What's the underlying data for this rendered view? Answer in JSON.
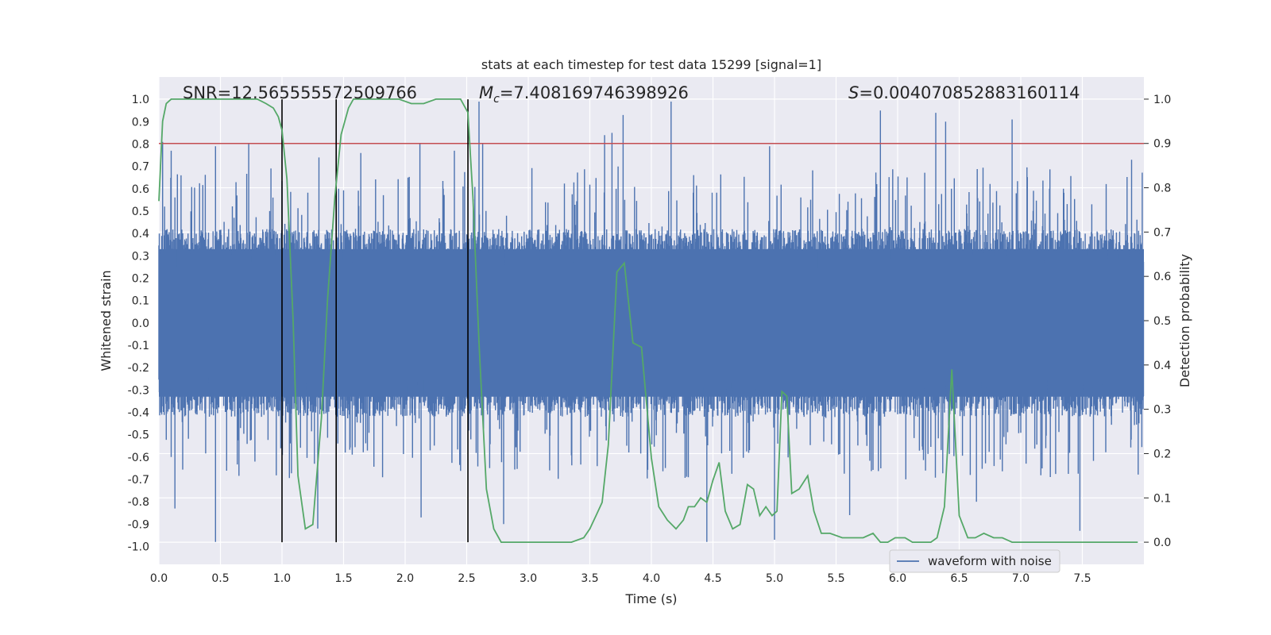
{
  "chart_data": {
    "type": "line",
    "title": "stats at each timestep for test data 15299 [signal=1]",
    "xlabel": "Time (s)",
    "ylabel_left": "Whitened strain",
    "ylabel_right": "Detection probability",
    "xlim": [
      0.0,
      8.0
    ],
    "ylim_left": [
      -1.08,
      1.1
    ],
    "ylim_right": [
      -0.05,
      1.05
    ],
    "x_ticks": [
      "0.0",
      "0.5",
      "1.0",
      "1.5",
      "2.0",
      "2.5",
      "3.0",
      "3.5",
      "4.0",
      "4.5",
      "5.0",
      "5.5",
      "6.0",
      "6.5",
      "7.0",
      "7.5"
    ],
    "y_ticks_left": [
      "1.0",
      "0.9",
      "0.8",
      "0.7",
      "0.6",
      "0.5",
      "0.4",
      "0.3",
      "0.2",
      "0.1",
      "0.0",
      "-0.1",
      "-0.2",
      "-0.3",
      "-0.4",
      "-0.5",
      "-0.6",
      "-0.7",
      "-0.8",
      "-0.9",
      "-1.0"
    ],
    "y_ticks_right": [
      "1.0",
      "0.9",
      "0.8",
      "0.7",
      "0.6",
      "0.5",
      "0.4",
      "0.3",
      "0.2",
      "0.1",
      "0.0"
    ],
    "grid": true,
    "legend": {
      "entries": [
        "waveform with noise"
      ],
      "placement": "lower-right"
    },
    "annotations": {
      "snr": "SNR=12.565555572509766",
      "mc_symbol": "M",
      "mc_sub": "c",
      "mc_value": "=7.408169746398926",
      "s_symbol": "S",
      "s_value": "=0.004070852883160114"
    },
    "threshold": {
      "axis": "right",
      "value": 0.9,
      "color": "#c44e52"
    },
    "vertical_lines": [
      1.0,
      1.44,
      2.51
    ],
    "series": [
      {
        "name": "waveform with noise",
        "axis": "left",
        "color": "#4c72b0",
        "kind": "noise-strain",
        "x_range": [
          0.0,
          8.0
        ],
        "typical_envelope": [
          -0.42,
          0.42
        ],
        "peaks": [
          {
            "x": 0.03,
            "y": 0.81
          },
          {
            "x": 0.1,
            "y": 0.77
          },
          {
            "x": 0.46,
            "y": 0.79
          },
          {
            "x": 0.46,
            "y": -0.98
          },
          {
            "x": 0.73,
            "y": 0.8
          },
          {
            "x": 0.13,
            "y": -0.83
          },
          {
            "x": 1.3,
            "y": 0.74
          },
          {
            "x": 1.29,
            "y": -0.92
          },
          {
            "x": 1.64,
            "y": 0.76
          },
          {
            "x": 2.13,
            "y": -0.87
          },
          {
            "x": 2.12,
            "y": 0.8
          },
          {
            "x": 2.4,
            "y": 0.77
          },
          {
            "x": 2.6,
            "y": 0.99
          },
          {
            "x": 2.63,
            "y": 0.8
          },
          {
            "x": 2.8,
            "y": -0.9
          },
          {
            "x": 3.62,
            "y": 0.84
          },
          {
            "x": 3.68,
            "y": 0.85
          },
          {
            "x": 3.77,
            "y": 0.93
          },
          {
            "x": 4.16,
            "y": 0.99
          },
          {
            "x": 4.45,
            "y": -0.98
          },
          {
            "x": 4.96,
            "y": 0.79
          },
          {
            "x": 5.0,
            "y": -0.97
          },
          {
            "x": 5.86,
            "y": 0.95
          },
          {
            "x": 6.31,
            "y": 0.94
          },
          {
            "x": 6.39,
            "y": 0.9
          },
          {
            "x": 6.64,
            "y": -0.8
          },
          {
            "x": 6.93,
            "y": 0.91
          },
          {
            "x": 7.48,
            "y": -0.93
          },
          {
            "x": 7.9,
            "y": 0.73
          },
          {
            "x": 5.61,
            "y": -0.86
          }
        ]
      },
      {
        "name": "",
        "axis": "right",
        "color": "#55a868",
        "x": [
          0.0,
          0.03,
          0.06,
          0.1,
          0.15,
          0.2,
          0.3,
          0.4,
          0.5,
          0.6,
          0.7,
          0.8,
          0.87,
          0.93,
          0.97,
          1.0,
          1.04,
          1.09,
          1.13,
          1.19,
          1.25,
          1.32,
          1.37,
          1.43,
          1.48,
          1.54,
          1.58,
          1.66,
          1.75,
          1.85,
          1.95,
          2.05,
          2.15,
          2.25,
          2.35,
          2.45,
          2.51,
          2.55,
          2.6,
          2.66,
          2.72,
          2.78,
          2.85,
          2.95,
          3.05,
          3.15,
          3.25,
          3.35,
          3.45,
          3.5,
          3.55,
          3.6,
          3.65,
          3.72,
          3.78,
          3.85,
          3.92,
          4.0,
          4.06,
          4.13,
          4.2,
          4.26,
          4.3,
          4.35,
          4.4,
          4.45,
          4.5,
          4.55,
          4.6,
          4.66,
          4.72,
          4.78,
          4.83,
          4.88,
          4.93,
          4.98,
          5.02,
          5.06,
          5.1,
          5.14,
          5.2,
          5.27,
          5.32,
          5.38,
          5.45,
          5.55,
          5.65,
          5.72,
          5.8,
          5.86,
          5.92,
          5.98,
          6.06,
          6.12,
          6.2,
          6.27,
          6.32,
          6.38,
          6.44,
          6.5,
          6.57,
          6.63,
          6.7,
          6.78,
          6.85,
          6.93,
          7.0,
          7.1,
          7.2,
          7.3,
          7.4,
          7.5,
          7.6,
          7.7,
          7.8,
          7.9,
          7.95
        ],
        "y": [
          0.77,
          0.95,
          0.99,
          1.0,
          1.0,
          1.0,
          1.0,
          1.0,
          1.0,
          1.0,
          1.0,
          1.0,
          0.99,
          0.98,
          0.96,
          0.93,
          0.82,
          0.5,
          0.15,
          0.03,
          0.04,
          0.28,
          0.55,
          0.78,
          0.92,
          0.98,
          1.0,
          1.0,
          1.0,
          1.0,
          1.0,
          0.99,
          0.99,
          1.0,
          1.0,
          1.0,
          0.97,
          0.78,
          0.45,
          0.12,
          0.03,
          0.0,
          0.0,
          0.0,
          0.0,
          0.0,
          0.0,
          0.0,
          0.01,
          0.03,
          0.06,
          0.09,
          0.22,
          0.61,
          0.63,
          0.45,
          0.44,
          0.19,
          0.08,
          0.05,
          0.03,
          0.05,
          0.08,
          0.08,
          0.1,
          0.09,
          0.14,
          0.18,
          0.07,
          0.03,
          0.04,
          0.13,
          0.12,
          0.06,
          0.08,
          0.06,
          0.07,
          0.34,
          0.33,
          0.11,
          0.12,
          0.15,
          0.07,
          0.02,
          0.02,
          0.01,
          0.01,
          0.01,
          0.02,
          0.0,
          0.0,
          0.01,
          0.01,
          0.0,
          0.0,
          0.0,
          0.01,
          0.08,
          0.39,
          0.06,
          0.01,
          0.01,
          0.02,
          0.01,
          0.01,
          0.0,
          0.0,
          0.0,
          0.0,
          0.0,
          0.0,
          0.0,
          0.0,
          0.0,
          0.0,
          0.0,
          0.0
        ]
      }
    ]
  }
}
